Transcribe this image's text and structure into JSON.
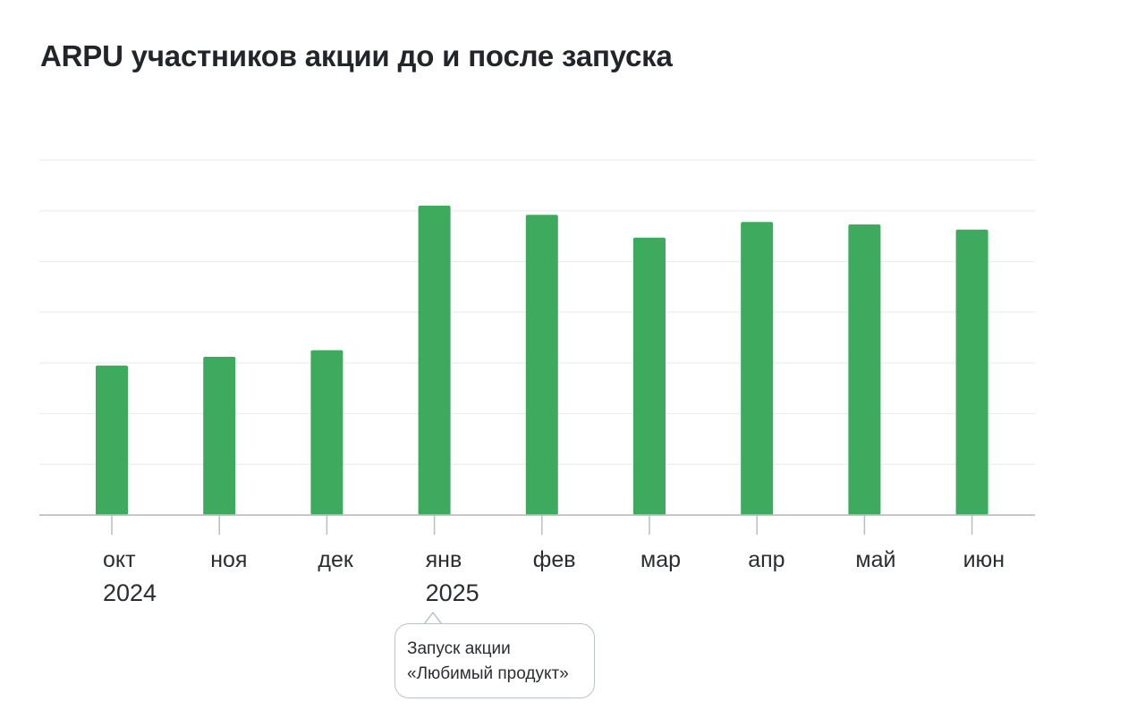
{
  "chart_data": {
    "type": "bar",
    "title": "ARPU участников акции до и после запуска",
    "categories": [
      "окт",
      "ноя",
      "дек",
      "янв",
      "фев",
      "мар",
      "апр",
      "май",
      "июн"
    ],
    "year_labels": [
      {
        "category": "окт",
        "text": "2024"
      },
      {
        "category": "янв",
        "text": "2025"
      }
    ],
    "values": [
      2.95,
      3.12,
      3.25,
      6.1,
      5.92,
      5.47,
      5.78,
      5.73,
      5.63
    ],
    "ylim": [
      0,
      7
    ],
    "grid": true,
    "xlabel": "",
    "ylabel": "",
    "bar_color": "#3daa5e",
    "annotation": {
      "category": "янв",
      "lines": [
        "Запуск акции",
        "«Любимый продукт»"
      ]
    }
  }
}
